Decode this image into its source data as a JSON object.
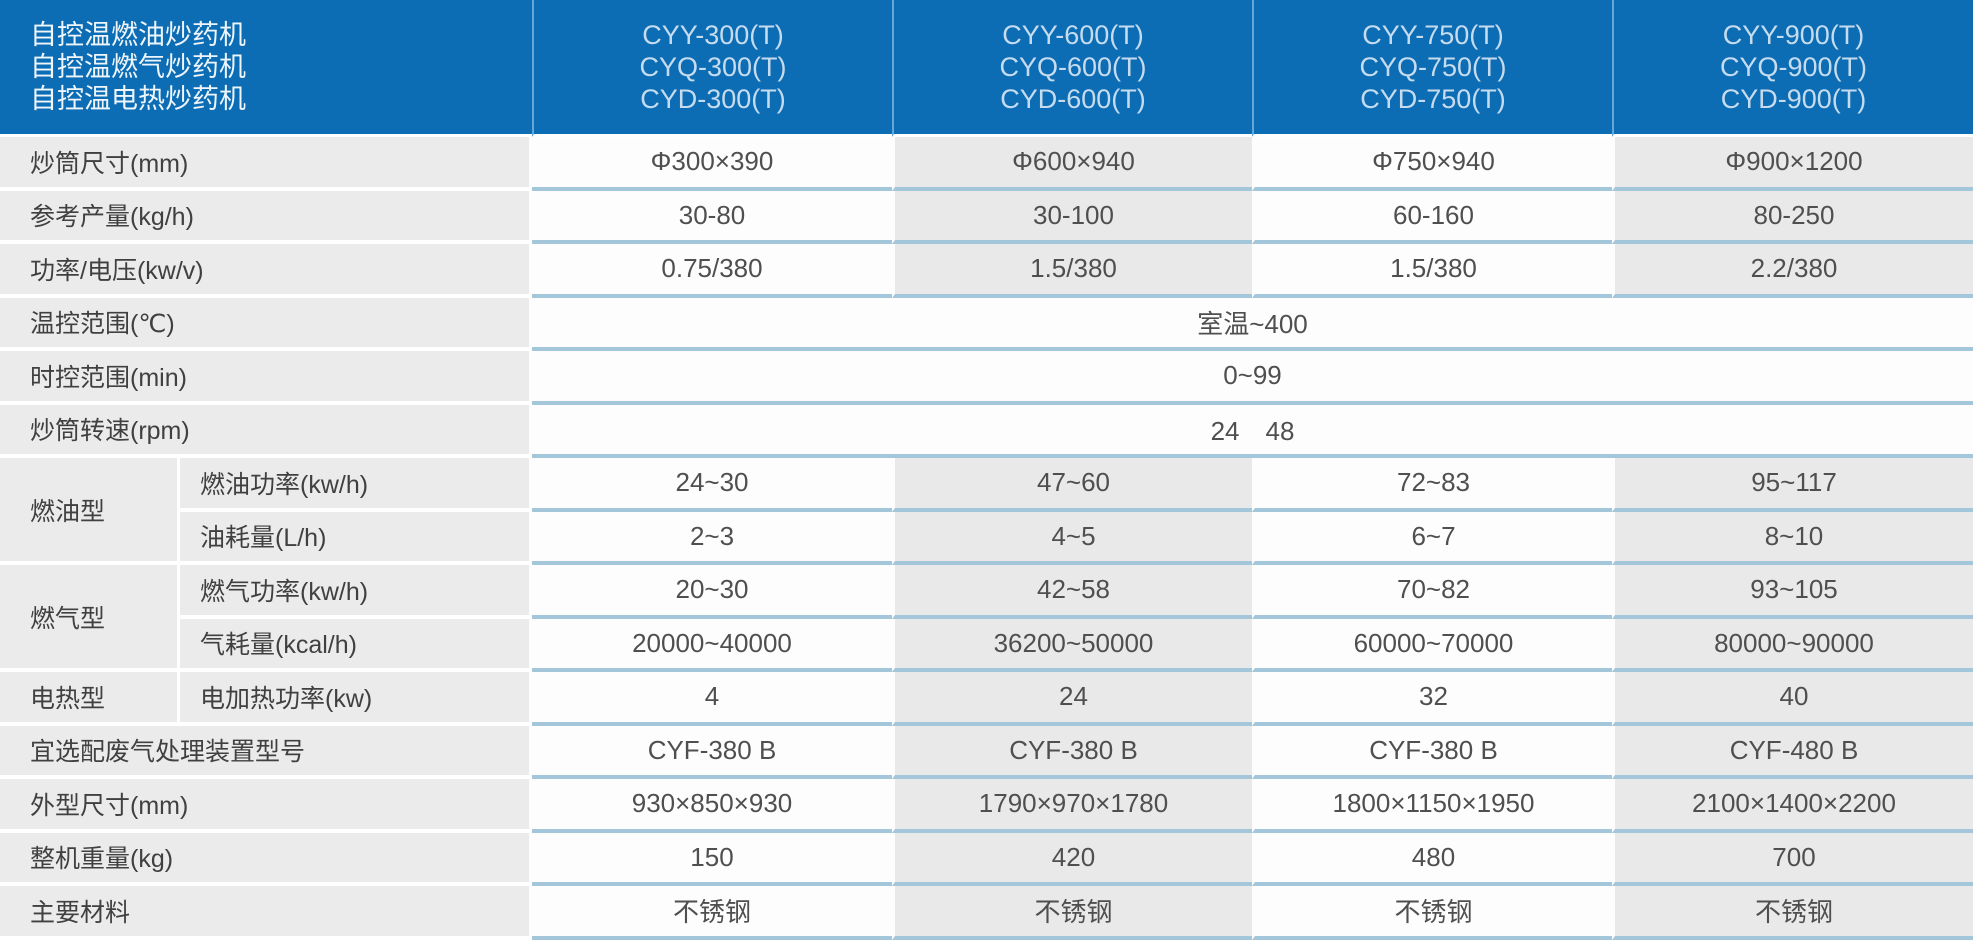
{
  "table": {
    "header": {
      "titles": [
        "自控温燃油炒药机",
        "自控温燃气炒药机",
        "自控温电热炒药机"
      ],
      "columns": [
        {
          "lines": [
            "CYY-300(T)",
            "CYQ-300(T)",
            "CYD-300(T)"
          ]
        },
        {
          "lines": [
            "CYY-600(T)",
            "CYQ-600(T)",
            "CYD-600(T)"
          ]
        },
        {
          "lines": [
            "CYY-750(T)",
            "CYQ-750(T)",
            "CYD-750(T)"
          ]
        },
        {
          "lines": [
            "CYY-900(T)",
            "CYQ-900(T)",
            "CYD-900(T)"
          ]
        }
      ]
    },
    "rows": {
      "drum_size": {
        "label": "炒筒尺寸(mm)",
        "values": [
          "Φ300×390",
          "Φ600×940",
          "Φ750×940",
          "Φ900×1200"
        ]
      },
      "capacity": {
        "label": "参考产量(kg/h)",
        "values": [
          "30-80",
          "30-100",
          "60-160",
          "80-250"
        ]
      },
      "power_voltage": {
        "label": "功率/电压(kw/v)",
        "values": [
          "0.75/380",
          "1.5/380",
          "1.5/380",
          "2.2/380"
        ]
      },
      "temp_range": {
        "label": "温控范围(℃)",
        "value": "室温~400"
      },
      "time_range": {
        "label": "时控范围(min)",
        "value": "0~99"
      },
      "drum_speed": {
        "label": "炒筒转速(rpm)",
        "value": "24　48"
      },
      "oil_group": {
        "label": "燃油型",
        "sub": [
          {
            "label": "燃油功率(kw/h)",
            "values": [
              "24~30",
              "47~60",
              "72~83",
              "95~117"
            ]
          },
          {
            "label": "油耗量(L/h)",
            "values": [
              "2~3",
              "4~5",
              "6~7",
              "8~10"
            ]
          }
        ]
      },
      "gas_group": {
        "label": "燃气型",
        "sub": [
          {
            "label": "燃气功率(kw/h)",
            "values": [
              "20~30",
              "42~58",
              "70~82",
              "93~105"
            ]
          },
          {
            "label": "气耗量(kcal/h)",
            "values": [
              "20000~40000",
              "36200~50000",
              "60000~70000",
              "80000~90000"
            ]
          }
        ]
      },
      "electric_group": {
        "label": "电热型",
        "sub": [
          {
            "label": "电加热功率(kw)",
            "values": [
              "4",
              "24",
              "32",
              "40"
            ]
          }
        ]
      },
      "exhaust_device": {
        "label": "宜选配废气处理装置型号",
        "values": [
          "CYF-380 B",
          "CYF-380 B",
          "CYF-380 B",
          "CYF-480 B"
        ]
      },
      "dimensions": {
        "label": "外型尺寸(mm)",
        "values": [
          "930×850×930",
          "1790×970×1780",
          "1800×1150×1950",
          "2100×1400×2200"
        ]
      },
      "weight": {
        "label": "整机重量(kg)",
        "values": [
          "150",
          "420",
          "480",
          "700"
        ]
      },
      "material": {
        "label": "主要材料",
        "values": [
          "不锈钢",
          "不锈钢",
          "不锈钢",
          "不锈钢"
        ]
      }
    },
    "colors": {
      "header_blue": "#0c6db5",
      "header_divider_blue": "#66a7d4",
      "header_title_text": "#eef5fb",
      "header_model_text": "#c6dcee",
      "label_bg_gray": "#ebebeb",
      "alt_column_gray": "#e9e9e9",
      "row_separator_blue": "#a3c6da",
      "body_text": "#4f4f4f"
    }
  }
}
